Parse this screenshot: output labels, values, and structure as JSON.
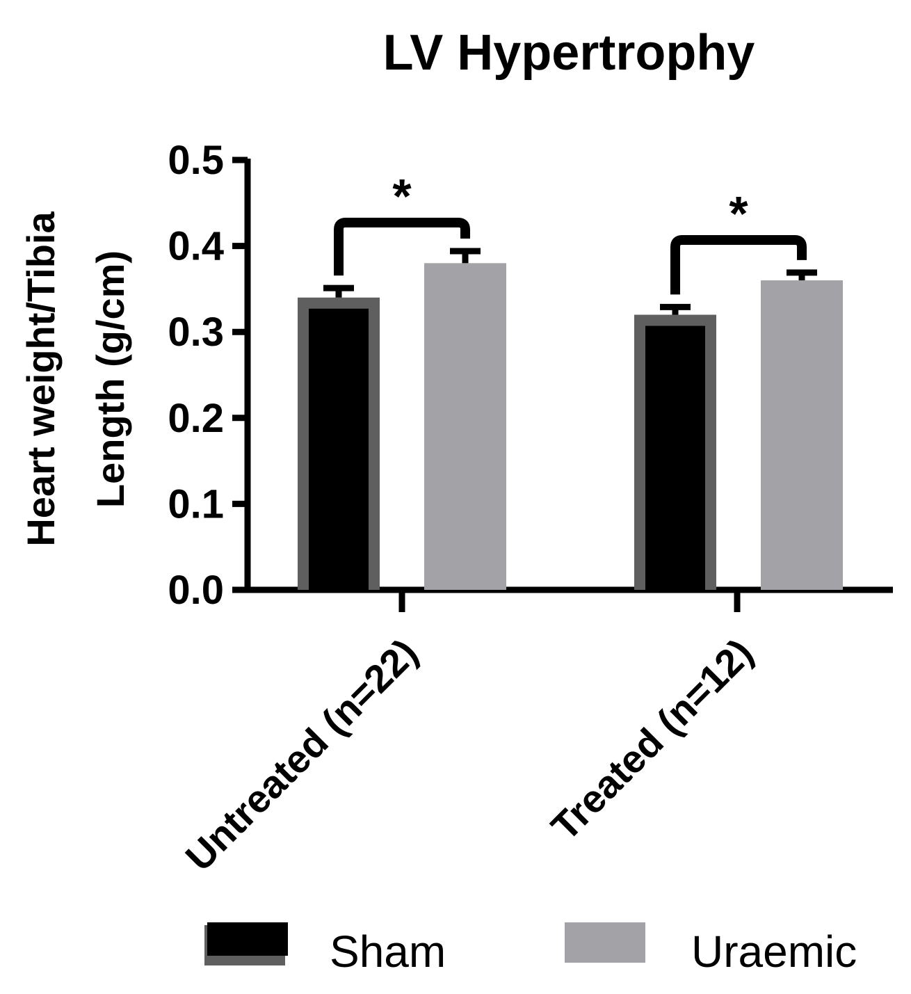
{
  "chart_data": {
    "type": "bar",
    "title": "LV Hypertrophy",
    "ylabel_lines": [
      "Heart weight/Tibia",
      "Length (g/cm)"
    ],
    "xlabel": "",
    "categories": [
      "Untreated (n=22)",
      "Treated (n=12)"
    ],
    "series": [
      {
        "name": "Sham",
        "values": [
          0.34,
          0.32
        ],
        "errors": [
          0.011,
          0.009
        ],
        "fill": "#000000",
        "stroke": "#5f5f5f"
      },
      {
        "name": "Uraemic",
        "values": [
          0.38,
          0.36
        ],
        "errors": [
          0.014,
          0.009
        ],
        "fill": "#a3a2a6",
        "stroke": "#a3a2a6"
      }
    ],
    "ylim": [
      0.0,
      0.5
    ],
    "yticks": [
      "0.0",
      "0.1",
      "0.2",
      "0.3",
      "0.4",
      "0.5"
    ],
    "significance": [
      "*",
      "*"
    ],
    "legend_position": "bottom",
    "grid": false
  }
}
